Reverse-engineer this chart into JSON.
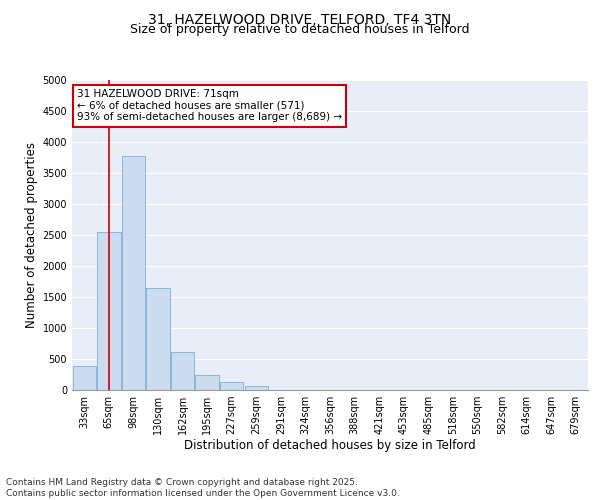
{
  "title_line1": "31, HAZELWOOD DRIVE, TELFORD, TF4 3TN",
  "title_line2": "Size of property relative to detached houses in Telford",
  "xlabel": "Distribution of detached houses by size in Telford",
  "ylabel": "Number of detached properties",
  "categories": [
    "33sqm",
    "65sqm",
    "98sqm",
    "130sqm",
    "162sqm",
    "195sqm",
    "227sqm",
    "259sqm",
    "291sqm",
    "324sqm",
    "356sqm",
    "388sqm",
    "421sqm",
    "453sqm",
    "485sqm",
    "518sqm",
    "550sqm",
    "582sqm",
    "614sqm",
    "647sqm",
    "679sqm"
  ],
  "values": [
    380,
    2550,
    3780,
    1650,
    620,
    240,
    130,
    60,
    0,
    0,
    0,
    0,
    0,
    0,
    0,
    0,
    0,
    0,
    0,
    0,
    0
  ],
  "bar_color": "#ccdcf0",
  "bar_edge_color": "#7bafd4",
  "vline_x_index": 1,
  "vline_color": "#cc0000",
  "annotation_title": "31 HAZELWOOD DRIVE: 71sqm",
  "annotation_line1": "← 6% of detached houses are smaller (571)",
  "annotation_line2": "93% of semi-detached houses are larger (8,689) →",
  "annotation_box_color": "#cc0000",
  "ylim": [
    0,
    5000
  ],
  "yticks": [
    0,
    500,
    1000,
    1500,
    2000,
    2500,
    3000,
    3500,
    4000,
    4500,
    5000
  ],
  "bg_color": "#e8eef8",
  "grid_color": "#ffffff",
  "footer_line1": "Contains HM Land Registry data © Crown copyright and database right 2025.",
  "footer_line2": "Contains public sector information licensed under the Open Government Licence v3.0.",
  "title_fontsize": 10,
  "subtitle_fontsize": 9,
  "label_fontsize": 8.5,
  "tick_fontsize": 7,
  "footer_fontsize": 6.5,
  "annot_fontsize": 7.5
}
